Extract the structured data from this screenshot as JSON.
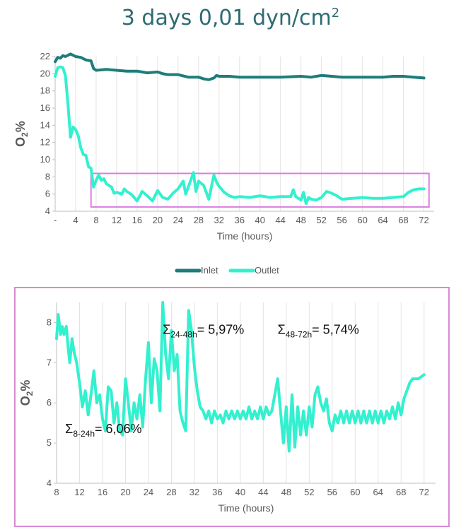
{
  "title_main": "3 days 0,01 dyn/cm",
  "title_sup": "2",
  "chart_data": [
    {
      "type": "line",
      "xlabel": "Time (hours)",
      "ylabel_main": "O",
      "ylabel_sub": "2",
      "ylabel_tail": "%",
      "xlim": [
        0,
        74
      ],
      "ylim": [
        4,
        22
      ],
      "xticks": [
        0,
        4,
        8,
        12,
        16,
        20,
        24,
        28,
        32,
        36,
        40,
        44,
        48,
        52,
        56,
        60,
        64,
        68,
        72
      ],
      "xtick_labels": [
        "-",
        "4",
        "8",
        "12",
        "16",
        "20",
        "24",
        "28",
        "32",
        "36",
        "40",
        "44",
        "48",
        "52",
        "56",
        "60",
        "64",
        "68",
        "72"
      ],
      "yticks": [
        4,
        6,
        8,
        10,
        12,
        14,
        16,
        18,
        20,
        22
      ],
      "grid": "vertical",
      "legend": "bottom",
      "highlight_box": {
        "x": [
          7,
          73
        ],
        "y": [
          4.5,
          8.4
        ],
        "color": "#da7fe0"
      },
      "series": [
        {
          "name": "Inlet",
          "color": "#1d7d7b",
          "points": [
            [
              0,
              21.4
            ],
            [
              0.5,
              21.9
            ],
            [
              1,
              21.8
            ],
            [
              1.5,
              22.1
            ],
            [
              2,
              22.0
            ],
            [
              3,
              22.3
            ],
            [
              4,
              22.0
            ],
            [
              5,
              21.9
            ],
            [
              6,
              21.6
            ],
            [
              7,
              21.5
            ],
            [
              7.5,
              20.6
            ],
            [
              8,
              20.4
            ],
            [
              10,
              20.5
            ],
            [
              12,
              20.4
            ],
            [
              14,
              20.3
            ],
            [
              16,
              20.3
            ],
            [
              17,
              20.2
            ],
            [
              18,
              20.1
            ],
            [
              20,
              20.2
            ],
            [
              21,
              20.0
            ],
            [
              22,
              19.9
            ],
            [
              24,
              19.9
            ],
            [
              26,
              19.6
            ],
            [
              28,
              19.6
            ],
            [
              29,
              19.4
            ],
            [
              30,
              19.3
            ],
            [
              31,
              19.5
            ],
            [
              31.5,
              19.8
            ],
            [
              32,
              19.7
            ],
            [
              34,
              19.7
            ],
            [
              36,
              19.6
            ],
            [
              40,
              19.6
            ],
            [
              44,
              19.6
            ],
            [
              48,
              19.7
            ],
            [
              50,
              19.6
            ],
            [
              52,
              19.8
            ],
            [
              54,
              19.7
            ],
            [
              56,
              19.6
            ],
            [
              60,
              19.6
            ],
            [
              64,
              19.6
            ],
            [
              66,
              19.7
            ],
            [
              68,
              19.7
            ],
            [
              70,
              19.6
            ],
            [
              72,
              19.5
            ]
          ]
        },
        {
          "name": "Outlet",
          "color": "#33f0cf",
          "points": [
            [
              0,
              19.7
            ],
            [
              0.5,
              20.7
            ],
            [
              1,
              20.8
            ],
            [
              1.5,
              20.7
            ],
            [
              2,
              19.8
            ],
            [
              2.5,
              16.5
            ],
            [
              3,
              12.6
            ],
            [
              3.5,
              13.8
            ],
            [
              4,
              13.5
            ],
            [
              4.5,
              12.8
            ],
            [
              5,
              11.4
            ],
            [
              5.5,
              10.6
            ],
            [
              6,
              10.5
            ],
            [
              6.5,
              9.2
            ],
            [
              7,
              9.0
            ],
            [
              7.5,
              6.8
            ],
            [
              8,
              7.6
            ],
            [
              8.5,
              8.2
            ],
            [
              9,
              7.6
            ],
            [
              9.5,
              7.8
            ],
            [
              10,
              7.2
            ],
            [
              11,
              6.8
            ],
            [
              11.5,
              6.1
            ],
            [
              12,
              6.2
            ],
            [
              13,
              6.0
            ],
            [
              13.5,
              6.6
            ],
            [
              14,
              6.3
            ],
            [
              15,
              5.9
            ],
            [
              16,
              5.2
            ],
            [
              17,
              6.3
            ],
            [
              18,
              5.8
            ],
            [
              19,
              5.2
            ],
            [
              20,
              6.4
            ],
            [
              21,
              5.6
            ],
            [
              22,
              5.4
            ],
            [
              23,
              6.1
            ],
            [
              24,
              6.6
            ],
            [
              25,
              7.5
            ],
            [
              25.5,
              6.0
            ],
            [
              26,
              6.8
            ],
            [
              27,
              8.5
            ],
            [
              27.5,
              6.3
            ],
            [
              28,
              7.5
            ],
            [
              29,
              7.0
            ],
            [
              30,
              5.4
            ],
            [
              31,
              8.2
            ],
            [
              31.5,
              7.4
            ],
            [
              32,
              6.9
            ],
            [
              33,
              6.2
            ],
            [
              34,
              5.8
            ],
            [
              35,
              5.6
            ],
            [
              36,
              5.7
            ],
            [
              38,
              5.6
            ],
            [
              40,
              5.8
            ],
            [
              42,
              5.6
            ],
            [
              44,
              5.7
            ],
            [
              46,
              5.7
            ],
            [
              46.5,
              6.5
            ],
            [
              47,
              5.7
            ],
            [
              48,
              5.3
            ],
            [
              48.5,
              6.2
            ],
            [
              49,
              4.9
            ],
            [
              49.5,
              5.6
            ],
            [
              50,
              5.4
            ],
            [
              51,
              5.3
            ],
            [
              52,
              5.6
            ],
            [
              53,
              6.3
            ],
            [
              54,
              6.1
            ],
            [
              55,
              5.8
            ],
            [
              56,
              5.4
            ],
            [
              58,
              5.5
            ],
            [
              60,
              5.6
            ],
            [
              62,
              5.5
            ],
            [
              64,
              5.5
            ],
            [
              66,
              5.6
            ],
            [
              68,
              5.7
            ],
            [
              69,
              6.2
            ],
            [
              70,
              6.5
            ],
            [
              71,
              6.6
            ],
            [
              72,
              6.6
            ]
          ]
        }
      ]
    },
    {
      "type": "line",
      "xlabel": "Time (hours)",
      "ylabel_main": "O",
      "ylabel_sub": "2",
      "ylabel_tail": "%",
      "xlim": [
        8,
        74
      ],
      "ylim": [
        4,
        8.5
      ],
      "xticks": [
        8,
        12,
        16,
        20,
        24,
        28,
        32,
        36,
        40,
        44,
        48,
        52,
        56,
        60,
        64,
        68,
        72
      ],
      "yticks": [
        4,
        5,
        6,
        7,
        8
      ],
      "grid": "vertical",
      "annotations": [
        {
          "sigma": "Σ",
          "sub": "8-24h",
          "value": "= 6,06%",
          "x": 9.5,
          "y": 5.25
        },
        {
          "sigma": "Σ",
          "sub": "24-48h",
          "value": "= 5,97%",
          "x": 26.5,
          "y": 7.72
        },
        {
          "sigma": "Σ",
          "sub": "48-72h",
          "value": "= 5,74%",
          "x": 46.5,
          "y": 7.72
        }
      ],
      "series": [
        {
          "name": "Outlet",
          "color": "#33f0cf",
          "points": [
            [
              8,
              7.6
            ],
            [
              8.3,
              8.2
            ],
            [
              8.7,
              7.7
            ],
            [
              9,
              7.9
            ],
            [
              9.3,
              7.7
            ],
            [
              9.7,
              7.9
            ],
            [
              10,
              7.4
            ],
            [
              10.3,
              7.0
            ],
            [
              10.7,
              7.6
            ],
            [
              11,
              7.3
            ],
            [
              11.5,
              7.0
            ],
            [
              12,
              6.5
            ],
            [
              12.5,
              5.9
            ],
            [
              13,
              6.3
            ],
            [
              13.5,
              5.7
            ],
            [
              14,
              6.2
            ],
            [
              14.5,
              6.8
            ],
            [
              15,
              6.0
            ],
            [
              15.5,
              6.2
            ],
            [
              16,
              5.6
            ],
            [
              16.5,
              5.3
            ],
            [
              17,
              6.4
            ],
            [
              17.5,
              6.3
            ],
            [
              18,
              5.5
            ],
            [
              18.5,
              6.0
            ],
            [
              19,
              5.3
            ],
            [
              19.5,
              5.2
            ],
            [
              20,
              6.6
            ],
            [
              20.5,
              6.0
            ],
            [
              21,
              5.3
            ],
            [
              21.5,
              6.0
            ],
            [
              22,
              5.6
            ],
            [
              22.5,
              6.2
            ],
            [
              23,
              5.4
            ],
            [
              23.5,
              6.6
            ],
            [
              24,
              7.5
            ],
            [
              24.5,
              6.0
            ],
            [
              25,
              7.1
            ],
            [
              25.5,
              6.8
            ],
            [
              26,
              5.8
            ],
            [
              26.5,
              8.5
            ],
            [
              27,
              7.2
            ],
            [
              27.5,
              6.6
            ],
            [
              28,
              7.8
            ],
            [
              28.5,
              6.8
            ],
            [
              29,
              7.2
            ],
            [
              29.5,
              5.8
            ],
            [
              30,
              5.5
            ],
            [
              30.5,
              5.3
            ],
            [
              31,
              8.3
            ],
            [
              31.5,
              7.8
            ],
            [
              32,
              6.9
            ],
            [
              32.5,
              6.3
            ],
            [
              33,
              5.9
            ],
            [
              33.5,
              5.8
            ],
            [
              34,
              5.6
            ],
            [
              34.5,
              5.8
            ],
            [
              35,
              5.5
            ],
            [
              35.5,
              5.8
            ],
            [
              36,
              5.6
            ],
            [
              36.5,
              5.7
            ],
            [
              37,
              5.5
            ],
            [
              37.5,
              5.8
            ],
            [
              38,
              5.6
            ],
            [
              38.5,
              5.8
            ],
            [
              39,
              5.6
            ],
            [
              39.5,
              5.8
            ],
            [
              40,
              5.6
            ],
            [
              40.5,
              5.8
            ],
            [
              41,
              5.6
            ],
            [
              41.5,
              5.9
            ],
            [
              42,
              5.6
            ],
            [
              42.5,
              5.8
            ],
            [
              43,
              5.6
            ],
            [
              43.5,
              5.9
            ],
            [
              44,
              5.6
            ],
            [
              44.5,
              5.9
            ],
            [
              45,
              5.7
            ],
            [
              45.5,
              5.8
            ],
            [
              46,
              6.2
            ],
            [
              46.5,
              6.6
            ],
            [
              47,
              5.8
            ],
            [
              47.5,
              5.0
            ],
            [
              48,
              5.9
            ],
            [
              48.5,
              4.8
            ],
            [
              49,
              6.2
            ],
            [
              49.5,
              4.9
            ],
            [
              50,
              5.9
            ],
            [
              50.5,
              5.2
            ],
            [
              51,
              5.8
            ],
            [
              51.5,
              5.2
            ],
            [
              52,
              5.9
            ],
            [
              52.5,
              5.4
            ],
            [
              53,
              6.2
            ],
            [
              53.5,
              6.4
            ],
            [
              54,
              6.0
            ],
            [
              54.5,
              5.8
            ],
            [
              55,
              6.1
            ],
            [
              55.5,
              5.5
            ],
            [
              56,
              5.3
            ],
            [
              56.5,
              5.7
            ],
            [
              57,
              5.5
            ],
            [
              57.5,
              5.8
            ],
            [
              58,
              5.5
            ],
            [
              58.5,
              5.8
            ],
            [
              59,
              5.5
            ],
            [
              59.5,
              5.8
            ],
            [
              60,
              5.5
            ],
            [
              60.5,
              5.8
            ],
            [
              61,
              5.5
            ],
            [
              61.5,
              5.8
            ],
            [
              62,
              5.5
            ],
            [
              62.5,
              5.8
            ],
            [
              63,
              5.5
            ],
            [
              63.5,
              5.8
            ],
            [
              64,
              5.5
            ],
            [
              64.5,
              5.8
            ],
            [
              65,
              5.5
            ],
            [
              65.5,
              5.8
            ],
            [
              66,
              5.6
            ],
            [
              66.5,
              5.9
            ],
            [
              67,
              5.6
            ],
            [
              67.5,
              6.0
            ],
            [
              68,
              5.7
            ],
            [
              68.5,
              6.1
            ],
            [
              69,
              6.3
            ],
            [
              69.5,
              6.5
            ],
            [
              70,
              6.6
            ],
            [
              71,
              6.6
            ],
            [
              72,
              6.7
            ]
          ]
        }
      ]
    }
  ]
}
